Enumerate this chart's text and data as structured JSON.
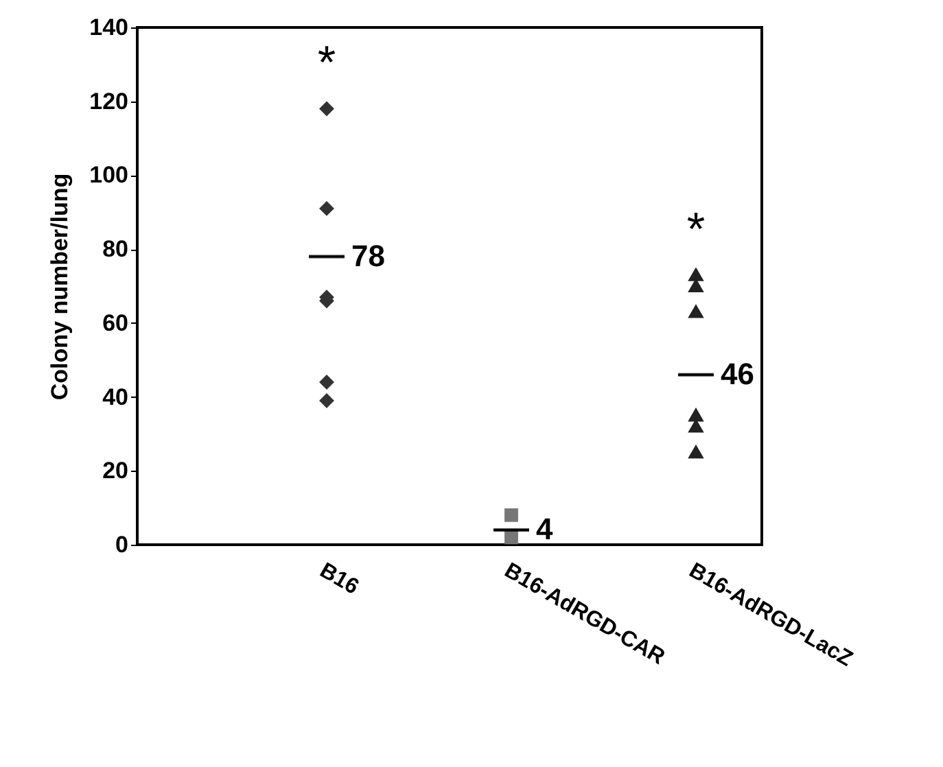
{
  "chart_data": {
    "type": "scatter",
    "ylabel": "Colony number/lung",
    "categories": [
      "B16",
      "B16-AdRGD-CAR",
      "B16-AdRGD-LacZ"
    ],
    "ylim": [
      0,
      140
    ],
    "yticks": [
      0,
      20,
      40,
      60,
      80,
      100,
      120,
      140
    ],
    "grid": false,
    "series": [
      {
        "marker": "diamond",
        "color": "#333333",
        "x": [
          "B16",
          "B16",
          "B16",
          "B16",
          "B16",
          "B16"
        ],
        "values": [
          118,
          91,
          67,
          66,
          44,
          39
        ],
        "value_labels": [
          "*",
          null,
          null,
          null,
          null,
          null
        ]
      },
      {
        "marker": "square",
        "color": "#777777",
        "x": [
          "B16-AdRGD-CAR",
          "B16-AdRGD-CAR"
        ],
        "values": [
          8,
          2
        ]
      },
      {
        "marker": "triangle",
        "color": "#222222",
        "x": [
          "B16-AdRGD-LacZ",
          "B16-AdRGD-LacZ",
          "B16-AdRGD-LacZ",
          "B16-AdRGD-LacZ",
          "B16-AdRGD-LacZ",
          "B16-AdRGD-LacZ"
        ],
        "values": [
          73,
          70,
          63,
          35,
          32,
          25
        ],
        "value_labels": [
          "*",
          null,
          null,
          null,
          null,
          null
        ]
      },
      {
        "type": "box",
        "color": "#000000",
        "boxes": [
          {
            "low": 78,
            "q1": 78,
            "median": 78,
            "q3": 78,
            "high": 78
          },
          {
            "low": 4,
            "q1": 4,
            "median": 4,
            "q3": 4,
            "high": 4
          },
          {
            "low": 46,
            "q1": 46,
            "median": 46,
            "q3": 46,
            "high": 46
          }
        ]
      }
    ],
    "annotations": [
      {
        "text": "78",
        "x": "B16",
        "y": 78
      },
      {
        "text": "4",
        "x": "B16-AdRGD-CAR",
        "y": 4
      },
      {
        "text": "46",
        "x": "B16-AdRGD-LacZ",
        "y": 46
      }
    ]
  }
}
